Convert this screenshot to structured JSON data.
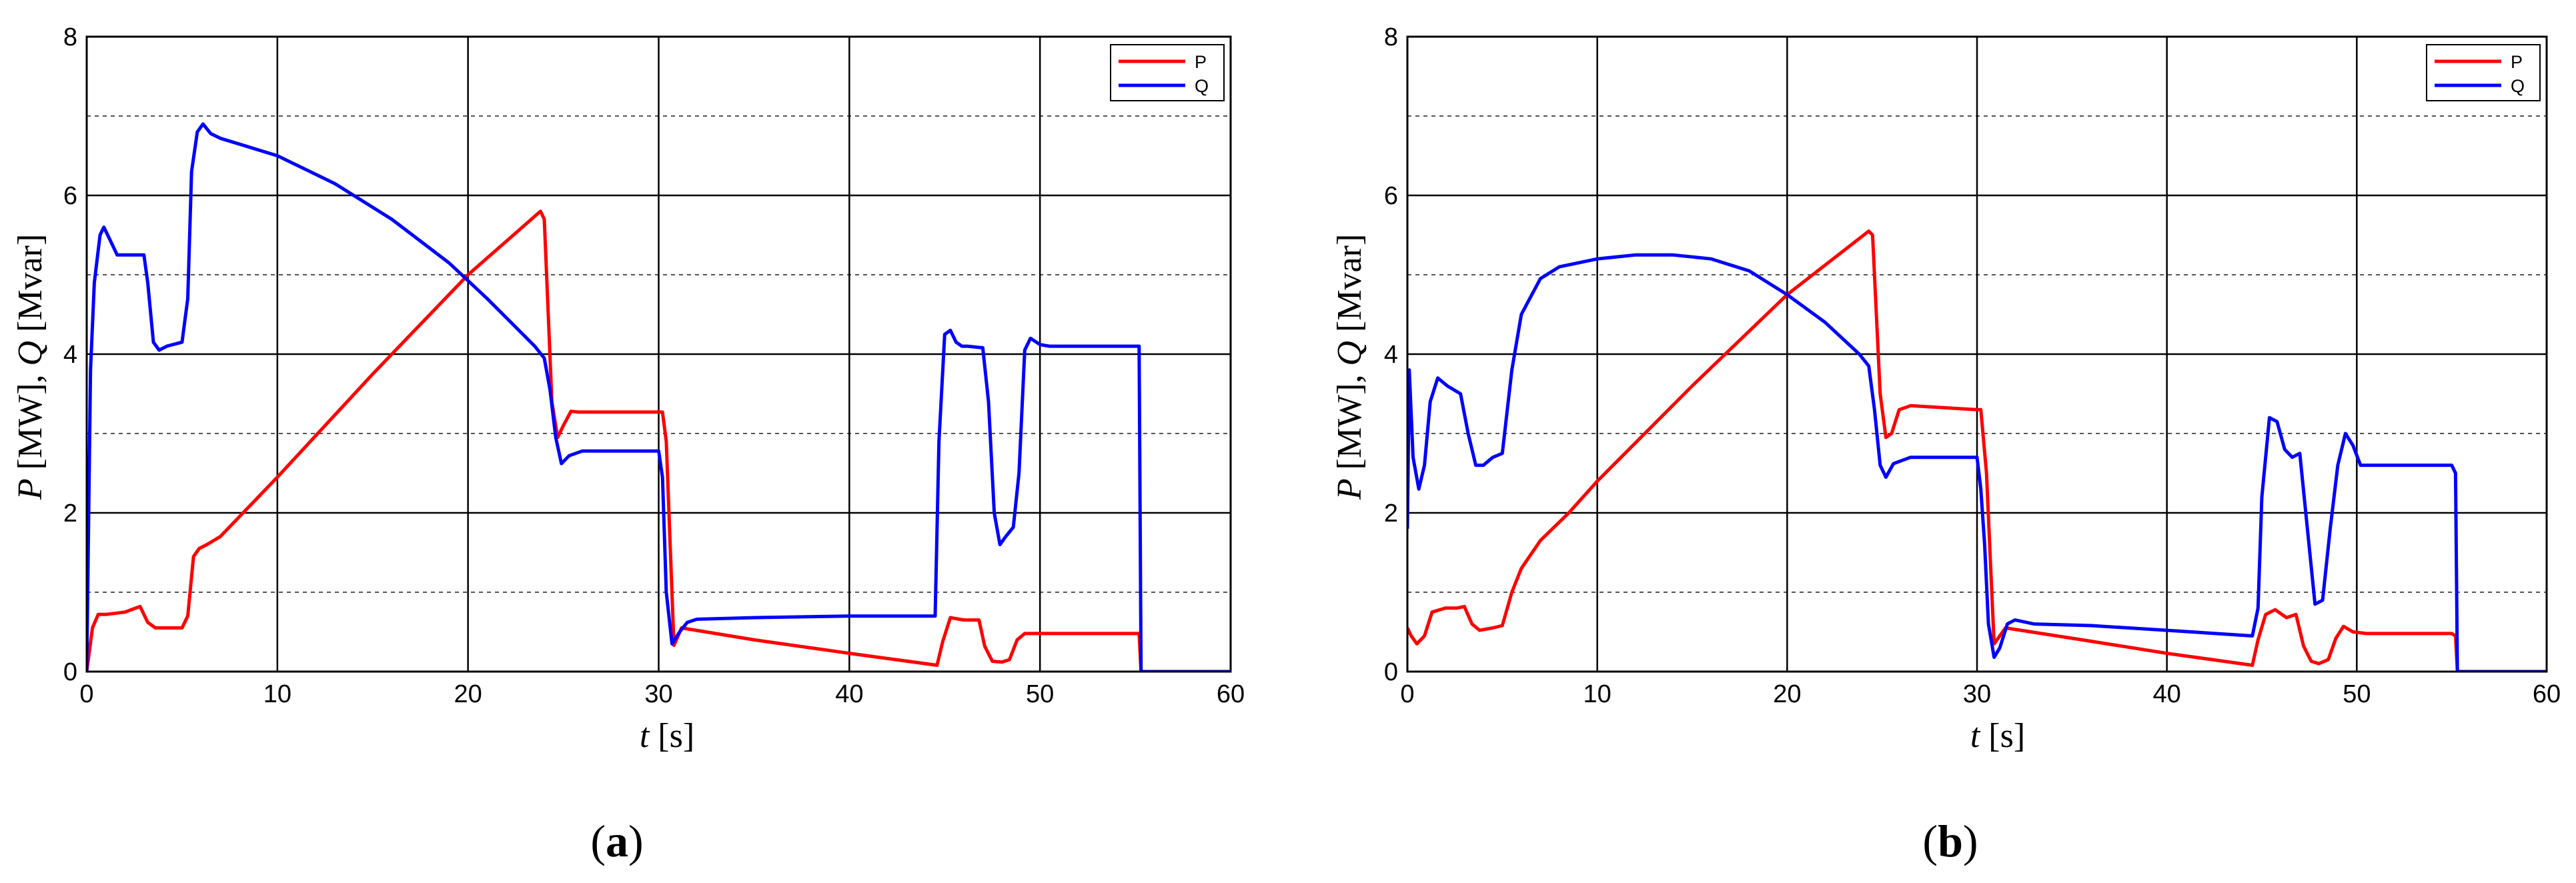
{
  "chart_data": [
    {
      "type": "line",
      "panel_label": "a",
      "xlabel_var": "t",
      "xlabel_unit": " [s]",
      "ylabel_p": "P",
      "ylabel_p_unit": " [MW], ",
      "ylabel_q": "Q",
      "ylabel_q_unit": " [Mvar]",
      "xlim": [
        0,
        60
      ],
      "ylim": [
        0,
        8
      ],
      "xticks": [
        0,
        10,
        20,
        30,
        40,
        50,
        60
      ],
      "yticks": [
        0,
        2,
        4,
        6,
        8
      ],
      "minor_y_gridlines": [
        1,
        3,
        5,
        7
      ],
      "grid": true,
      "legend_position": "top-right",
      "series": [
        {
          "name": "P",
          "color": "#ff0000",
          "x": [
            0,
            0.3,
            0.6,
            1.0,
            2.0,
            2.8,
            3.2,
            3.6,
            4.0,
            5.0,
            5.3,
            5.6,
            5.9,
            6.3,
            7.0,
            10,
            15,
            20,
            23.8,
            24.0,
            24.4,
            24.7,
            25.0,
            25.4,
            25.8,
            30.2,
            30.4,
            30.8,
            31.2,
            35,
            40,
            44.6,
            44.9,
            45.3,
            46.0,
            46.8,
            47.1,
            47.5,
            48.0,
            48.4,
            48.8,
            49.2,
            50,
            55.2,
            55.3,
            60
          ],
          "y": [
            0,
            0.55,
            0.72,
            0.72,
            0.75,
            0.82,
            0.62,
            0.55,
            0.55,
            0.55,
            0.7,
            1.45,
            1.55,
            1.6,
            1.7,
            2.45,
            3.75,
            5.0,
            5.8,
            5.7,
            3.4,
            2.95,
            3.1,
            3.28,
            3.27,
            3.27,
            2.9,
            0.33,
            0.55,
            0.4,
            0.23,
            0.08,
            0.38,
            0.68,
            0.65,
            0.65,
            0.32,
            0.13,
            0.12,
            0.15,
            0.4,
            0.48,
            0.48,
            0.48,
            0,
            0
          ]
        },
        {
          "name": "Q",
          "color": "#0000ff",
          "x": [
            0,
            0.2,
            0.4,
            0.7,
            0.9,
            1.2,
            1.6,
            2.0,
            3.0,
            3.2,
            3.5,
            3.8,
            4.2,
            5.0,
            5.3,
            5.5,
            5.8,
            6.1,
            6.5,
            7.0,
            10,
            13,
            16,
            19,
            21,
            23.5,
            24.0,
            24.3,
            24.6,
            24.9,
            25.3,
            26.0,
            30.0,
            30.2,
            30.4,
            30.7,
            31.1,
            31.5,
            32,
            35,
            40,
            44.5,
            44.7,
            45.0,
            45.3,
            45.6,
            45.9,
            46.2,
            47.0,
            47.3,
            47.6,
            47.9,
            48.2,
            48.6,
            48.9,
            49.2,
            49.5,
            50.0,
            50.5,
            55.0,
            55.2,
            55.3,
            60
          ],
          "y": [
            0,
            3.8,
            4.9,
            5.5,
            5.6,
            5.45,
            5.25,
            5.25,
            5.25,
            4.9,
            4.15,
            4.05,
            4.1,
            4.15,
            4.7,
            6.3,
            6.8,
            6.9,
            6.78,
            6.72,
            6.5,
            6.15,
            5.7,
            5.15,
            4.7,
            4.1,
            3.95,
            3.55,
            2.95,
            2.62,
            2.72,
            2.78,
            2.78,
            2.45,
            1.0,
            0.35,
            0.5,
            0.62,
            0.66,
            0.68,
            0.7,
            0.7,
            2.9,
            4.25,
            4.3,
            4.15,
            4.1,
            4.1,
            4.08,
            3.4,
            2.0,
            1.6,
            1.7,
            1.82,
            2.5,
            4.05,
            4.2,
            4.12,
            4.1,
            4.1,
            4.1,
            0,
            0
          ]
        }
      ]
    },
    {
      "type": "line",
      "panel_label": "b",
      "xlabel_var": "t",
      "xlabel_unit": " [s]",
      "ylabel_p": "P",
      "ylabel_p_unit": " [MW], ",
      "ylabel_q": "Q",
      "ylabel_q_unit": " [Mvar]",
      "xlim": [
        0,
        60
      ],
      "ylim": [
        0,
        8
      ],
      "xticks": [
        0,
        10,
        20,
        30,
        40,
        50,
        60
      ],
      "yticks": [
        0,
        2,
        4,
        6,
        8
      ],
      "minor_y_gridlines": [
        1,
        3,
        5,
        7
      ],
      "grid": true,
      "legend_position": "top-right",
      "series": [
        {
          "name": "P",
          "color": "#ff0000",
          "x": [
            0,
            0.2,
            0.5,
            0.9,
            1.3,
            2.0,
            2.6,
            3.0,
            3.4,
            3.8,
            4.5,
            5.0,
            5.5,
            6.0,
            7.0,
            8.5,
            10,
            15,
            20,
            24.3,
            24.5,
            24.9,
            25.2,
            25.5,
            25.9,
            26.5,
            30.0,
            30.2,
            30.5,
            30.9,
            31.5,
            35,
            40,
            44.5,
            44.8,
            45.2,
            45.7,
            46.3,
            46.8,
            47.2,
            47.6,
            48.0,
            48.5,
            48.9,
            49.3,
            49.8,
            50.5,
            55.0,
            55.2,
            55.3,
            60
          ],
          "y": [
            0.55,
            0.45,
            0.35,
            0.45,
            0.75,
            0.8,
            0.8,
            0.82,
            0.6,
            0.52,
            0.55,
            0.58,
            1.0,
            1.3,
            1.65,
            2.0,
            2.4,
            3.6,
            4.75,
            5.55,
            5.5,
            3.5,
            2.95,
            3.0,
            3.3,
            3.35,
            3.3,
            3.3,
            2.5,
            0.35,
            0.55,
            0.42,
            0.23,
            0.08,
            0.4,
            0.72,
            0.78,
            0.68,
            0.72,
            0.32,
            0.13,
            0.1,
            0.15,
            0.42,
            0.57,
            0.5,
            0.48,
            0.48,
            0.45,
            0,
            0
          ]
        },
        {
          "name": "Q",
          "color": "#0000ff",
          "x": [
            0,
            0.1,
            0.3,
            0.6,
            0.9,
            1.2,
            1.6,
            2.1,
            2.8,
            3.2,
            3.6,
            4.0,
            4.5,
            5.0,
            5.5,
            6.0,
            7.0,
            8.0,
            10,
            12,
            14,
            16,
            18,
            20,
            22,
            23.8,
            24.3,
            24.6,
            24.9,
            25.2,
            25.6,
            26.5,
            30.0,
            30.2,
            30.4,
            30.6,
            30.9,
            31.2,
            31.6,
            32.0,
            33,
            36,
            40,
            44.5,
            44.8,
            45.0,
            45.4,
            45.8,
            46.2,
            46.6,
            47.0,
            47.4,
            47.8,
            48.2,
            48.6,
            49.0,
            49.4,
            49.8,
            50.2,
            50.8,
            55.0,
            55.2,
            55.3,
            60
          ],
          "y": [
            1.8,
            3.8,
            2.7,
            2.3,
            2.6,
            3.4,
            3.7,
            3.6,
            3.5,
            3.0,
            2.6,
            2.6,
            2.7,
            2.75,
            3.8,
            4.5,
            4.95,
            5.1,
            5.2,
            5.25,
            5.25,
            5.2,
            5.05,
            4.75,
            4.4,
            4.0,
            3.85,
            3.3,
            2.6,
            2.45,
            2.62,
            2.7,
            2.7,
            2.3,
            1.6,
            0.6,
            0.18,
            0.3,
            0.6,
            0.65,
            0.6,
            0.58,
            0.52,
            0.45,
            0.8,
            2.2,
            3.2,
            3.15,
            2.8,
            2.7,
            2.75,
            1.8,
            0.85,
            0.9,
            1.8,
            2.6,
            3.0,
            2.85,
            2.6,
            2.6,
            2.6,
            2.5,
            0,
            0
          ]
        }
      ]
    }
  ]
}
